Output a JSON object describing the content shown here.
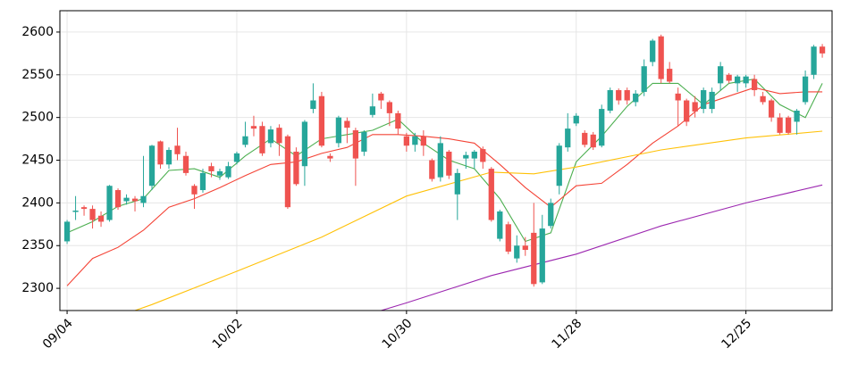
{
  "chart_data": {
    "type": "candlestick",
    "categories": [
      "09/04",
      null,
      null,
      null,
      null,
      null,
      null,
      null,
      null,
      null,
      null,
      null,
      null,
      null,
      null,
      null,
      null,
      null,
      null,
      null,
      "10/02",
      null,
      null,
      null,
      null,
      null,
      null,
      null,
      null,
      null,
      null,
      null,
      null,
      null,
      null,
      null,
      null,
      null,
      null,
      null,
      "10/30",
      null,
      null,
      null,
      null,
      null,
      null,
      null,
      null,
      null,
      null,
      null,
      null,
      null,
      null,
      null,
      null,
      null,
      null,
      null,
      "11/28",
      null,
      null,
      null,
      null,
      null,
      null,
      null,
      null,
      null,
      null,
      null,
      null,
      null,
      null,
      null,
      null,
      null,
      null,
      null,
      "12/25",
      null,
      null,
      null,
      null,
      null,
      null,
      null,
      null,
      null
    ],
    "open": [
      2355,
      2390,
      2395,
      2393,
      2385,
      2380,
      2415,
      2402,
      2405,
      2400,
      2420,
      2472,
      2445,
      2467,
      2455,
      2420,
      2415,
      2443,
      2432,
      2430,
      2448,
      2468,
      2490,
      2490,
      2470,
      2488,
      2478,
      2460,
      2443,
      2510,
      2525,
      2455,
      2470,
      2496,
      2485,
      2460,
      2503,
      2528,
      2518,
      2505,
      2478,
      2468,
      2478,
      2450,
      2430,
      2460,
      2410,
      2452,
      2452,
      2463,
      2440,
      2358,
      2375,
      2335,
      2350,
      2365,
      2307,
      2373,
      2420,
      2465,
      2493,
      2482,
      2480,
      2467,
      2508,
      2532,
      2532,
      2518,
      2530,
      2565,
      2595,
      2557,
      2528,
      2520,
      2518,
      2510,
      2510,
      2540,
      2550,
      2540,
      2540,
      2545,
      2525,
      2520,
      2500,
      2500,
      2495,
      2518,
      2550,
      2583
    ],
    "high": [
      2380,
      2408,
      2397,
      2397,
      2390,
      2421,
      2417,
      2410,
      2408,
      2455,
      2468,
      2473,
      2465,
      2488,
      2460,
      2422,
      2440,
      2447,
      2440,
      2448,
      2460,
      2495,
      2502,
      2495,
      2490,
      2492,
      2480,
      2465,
      2497,
      2540,
      2530,
      2458,
      2502,
      2500,
      2488,
      2485,
      2528,
      2530,
      2520,
      2508,
      2482,
      2482,
      2485,
      2452,
      2478,
      2462,
      2440,
      2460,
      2462,
      2466,
      2442,
      2392,
      2378,
      2362,
      2360,
      2400,
      2386,
      2405,
      2470,
      2505,
      2505,
      2485,
      2483,
      2515,
      2535,
      2534,
      2535,
      2532,
      2568,
      2592,
      2597,
      2565,
      2535,
      2522,
      2525,
      2535,
      2535,
      2565,
      2552,
      2550,
      2550,
      2550,
      2530,
      2522,
      2505,
      2502,
      2510,
      2555,
      2585,
      2586
    ],
    "low": [
      2352,
      2380,
      2385,
      2370,
      2372,
      2378,
      2392,
      2398,
      2390,
      2395,
      2415,
      2440,
      2440,
      2450,
      2432,
      2393,
      2412,
      2430,
      2427,
      2428,
      2445,
      2465,
      2478,
      2455,
      2465,
      2455,
      2393,
      2420,
      2420,
      2505,
      2465,
      2448,
      2465,
      2470,
      2420,
      2455,
      2500,
      2510,
      2490,
      2480,
      2460,
      2460,
      2455,
      2425,
      2425,
      2428,
      2380,
      2440,
      2440,
      2440,
      2378,
      2355,
      2340,
      2330,
      2338,
      2302,
      2305,
      2370,
      2410,
      2460,
      2490,
      2465,
      2462,
      2465,
      2505,
      2515,
      2515,
      2513,
      2525,
      2560,
      2540,
      2540,
      2490,
      2490,
      2500,
      2505,
      2505,
      2532,
      2540,
      2530,
      2535,
      2525,
      2515,
      2495,
      2480,
      2480,
      2480,
      2515,
      2545,
      2570
    ],
    "close": [
      2378,
      2391,
      2393,
      2380,
      2378,
      2420,
      2395,
      2406,
      2402,
      2408,
      2467,
      2445,
      2462,
      2457,
      2435,
      2410,
      2435,
      2437,
      2437,
      2443,
      2458,
      2478,
      2487,
      2458,
      2486,
      2470,
      2395,
      2422,
      2495,
      2520,
      2467,
      2452,
      2500,
      2488,
      2452,
      2483,
      2513,
      2520,
      2505,
      2487,
      2467,
      2478,
      2467,
      2428,
      2470,
      2432,
      2435,
      2456,
      2460,
      2448,
      2380,
      2390,
      2343,
      2350,
      2345,
      2305,
      2370,
      2400,
      2467,
      2487,
      2502,
      2468,
      2465,
      2510,
      2532,
      2520,
      2520,
      2528,
      2560,
      2590,
      2545,
      2542,
      2520,
      2495,
      2507,
      2532,
      2530,
      2560,
      2543,
      2548,
      2548,
      2532,
      2518,
      2500,
      2482,
      2482,
      2508,
      2548,
      2583,
      2575
    ],
    "up_color": "#26a69a",
    "down_color": "#ef5350",
    "lines": [
      {
        "color": "#4caf50",
        "x": [
          0,
          3,
          6,
          9,
          12,
          15,
          18,
          21,
          24,
          27,
          30,
          33,
          36,
          39,
          42,
          45,
          48,
          51,
          54,
          57,
          60,
          63,
          66,
          69,
          72,
          75,
          78,
          81,
          84,
          87,
          89
        ],
        "values": [
          2365,
          2378,
          2396,
          2405,
          2438,
          2440,
          2430,
          2455,
          2475,
          2455,
          2475,
          2480,
          2485,
          2498,
          2470,
          2450,
          2440,
          2405,
          2355,
          2365,
          2448,
          2478,
          2513,
          2540,
          2540,
          2515,
          2540,
          2545,
          2515,
          2500,
          2540
        ]
      },
      {
        "color": "#f44336",
        "x": [
          0,
          3,
          6,
          9,
          12,
          15,
          18,
          21,
          24,
          27,
          30,
          33,
          36,
          39,
          42,
          45,
          48,
          51,
          54,
          57,
          60,
          63,
          66,
          69,
          72,
          75,
          78,
          81,
          84,
          87,
          89
        ],
        "values": [
          2303,
          2335,
          2348,
          2368,
          2395,
          2405,
          2418,
          2432,
          2445,
          2448,
          2458,
          2465,
          2480,
          2480,
          2478,
          2475,
          2470,
          2445,
          2418,
          2395,
          2420,
          2423,
          2445,
          2470,
          2490,
          2515,
          2525,
          2535,
          2528,
          2530,
          2530
        ]
      },
      {
        "color": "#ffc107",
        "x": [
          8,
          10,
          20,
          30,
          40,
          50,
          55,
          60,
          70,
          80,
          89
        ],
        "values": [
          2274,
          2281,
          2320,
          2360,
          2408,
          2436,
          2434,
          2442,
          2462,
          2476,
          2484
        ]
      },
      {
        "color": "#9c27b0",
        "x": [
          37,
          40,
          50,
          60,
          70,
          80,
          89
        ],
        "values": [
          2274,
          2283,
          2315,
          2340,
          2373,
          2400,
          2421
        ]
      }
    ],
    "ylim": [
      2274,
      2625
    ],
    "yticks": [
      2300,
      2350,
      2400,
      2450,
      2500,
      2550,
      2600
    ],
    "grid": true
  }
}
